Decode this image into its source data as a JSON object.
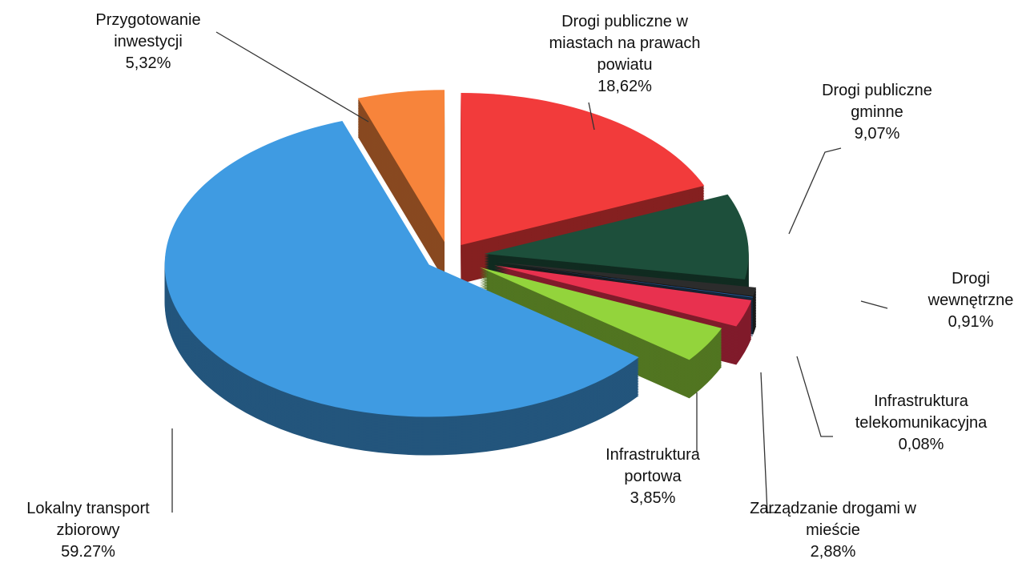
{
  "chart_data": {
    "type": "pie",
    "categories": [
      "Drogi publiczne w miastach na prawach powiatu",
      "Drogi publiczne gminne",
      "Drogi wewnętrzne",
      "Infrastruktura telekomunikacyjna",
      "Zarządzanie drogami w mieście",
      "Infrastruktura portowa",
      "Lokalny transport zbiorowy",
      "Przygotowanie inwestycji"
    ],
    "values": [
      18.62,
      9.07,
      0.91,
      0.08,
      2.88,
      3.85,
      59.27,
      5.32
    ],
    "value_labels": [
      "18,62%",
      "9,07%",
      "0,91%",
      "0,08%",
      "2,88%",
      "3,85%",
      "59.27%",
      "5,32%"
    ],
    "colors": [
      "#f23b3b",
      "#1d4f3b",
      "#2c2c2c",
      "#1f5fa8",
      "#e8314f",
      "#93d43c",
      "#3f9be2",
      "#f7843b"
    ]
  }
}
